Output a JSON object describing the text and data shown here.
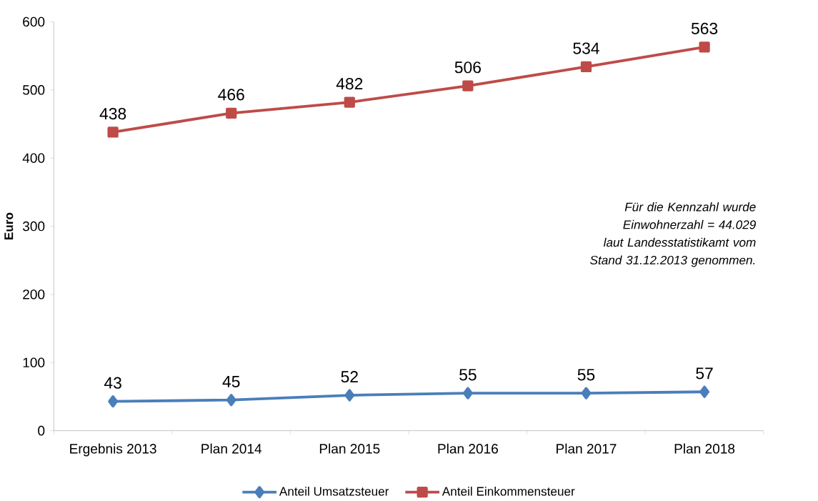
{
  "chart_data": {
    "type": "line",
    "ylabel": "Euro",
    "categories": [
      "Ergebnis 2013",
      "Plan 2014",
      "Plan 2015",
      "Plan 2016",
      "Plan 2017",
      "Plan 2018"
    ],
    "series": [
      {
        "name": "Anteil Umsatzsteuer",
        "color": "#4a7ebb",
        "marker": "diamond",
        "values": [
          43,
          45,
          52,
          55,
          55,
          57
        ]
      },
      {
        "name": "Anteil Einkommensteuer",
        "color": "#be4b48",
        "marker": "square",
        "values": [
          438,
          466,
          482,
          506,
          534,
          563
        ]
      }
    ],
    "ylim": [
      0,
      600
    ],
    "yticks": [
      0,
      100,
      200,
      300,
      400,
      500,
      600
    ],
    "data_labels": true,
    "grid": false,
    "legend": "bottom",
    "line_style": "solid",
    "annotations": [
      "Für die Kennzahl  wurde Einwohnerzahl  = 44.029 laut Landesstatistikamt  vom Stand 31.12.2013 genommen."
    ]
  }
}
